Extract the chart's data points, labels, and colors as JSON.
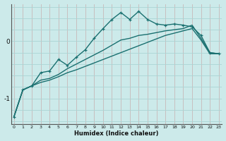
{
  "xlabel": "Humidex (Indice chaleur)",
  "background_color": "#cceaea",
  "grid_color": "#aad4d4",
  "line_color": "#1a7070",
  "x_ticks": [
    0,
    1,
    2,
    3,
    4,
    5,
    6,
    7,
    8,
    9,
    10,
    11,
    12,
    13,
    14,
    15,
    16,
    17,
    18,
    19,
    20,
    21,
    22,
    23
  ],
  "y_ticks": [
    -1,
    0
  ],
  "xlim": [
    -0.3,
    23.3
  ],
  "ylim": [
    -1.45,
    0.65
  ],
  "line_wiggly_x": [
    0,
    1,
    2,
    3,
    4,
    5,
    6,
    7,
    8,
    9,
    10,
    11,
    12,
    13,
    14,
    15,
    16,
    17,
    18,
    19,
    20,
    21,
    22,
    23
  ],
  "line_wiggly_y": [
    -1.32,
    -0.85,
    -0.78,
    -0.55,
    -0.52,
    -0.32,
    -0.42,
    -0.28,
    -0.15,
    0.05,
    0.22,
    0.38,
    0.5,
    0.38,
    0.52,
    0.38,
    0.3,
    0.28,
    0.3,
    0.28,
    0.25,
    0.1,
    -0.2,
    -0.22
  ],
  "line_mid_x": [
    0,
    1,
    2,
    3,
    4,
    5,
    6,
    7,
    8,
    9,
    10,
    11,
    12,
    13,
    14,
    15,
    16,
    17,
    18,
    19,
    20,
    21,
    22,
    23
  ],
  "line_mid_y": [
    -1.32,
    -0.85,
    -0.78,
    -0.68,
    -0.65,
    -0.58,
    -0.48,
    -0.4,
    -0.32,
    -0.24,
    -0.16,
    -0.07,
    0.02,
    0.05,
    0.1,
    0.12,
    0.15,
    0.18,
    0.2,
    0.22,
    0.28,
    0.05,
    -0.2,
    -0.22
  ],
  "line_low_x": [
    0,
    1,
    2,
    3,
    4,
    5,
    6,
    7,
    8,
    9,
    10,
    11,
    12,
    13,
    14,
    15,
    16,
    17,
    18,
    19,
    20,
    21,
    22,
    23
  ],
  "line_low_y": [
    -1.32,
    -0.85,
    -0.78,
    -0.72,
    -0.68,
    -0.62,
    -0.55,
    -0.5,
    -0.44,
    -0.38,
    -0.32,
    -0.26,
    -0.2,
    -0.14,
    -0.08,
    -0.02,
    0.04,
    0.1,
    0.14,
    0.18,
    0.22,
    0.02,
    -0.22,
    -0.22
  ]
}
